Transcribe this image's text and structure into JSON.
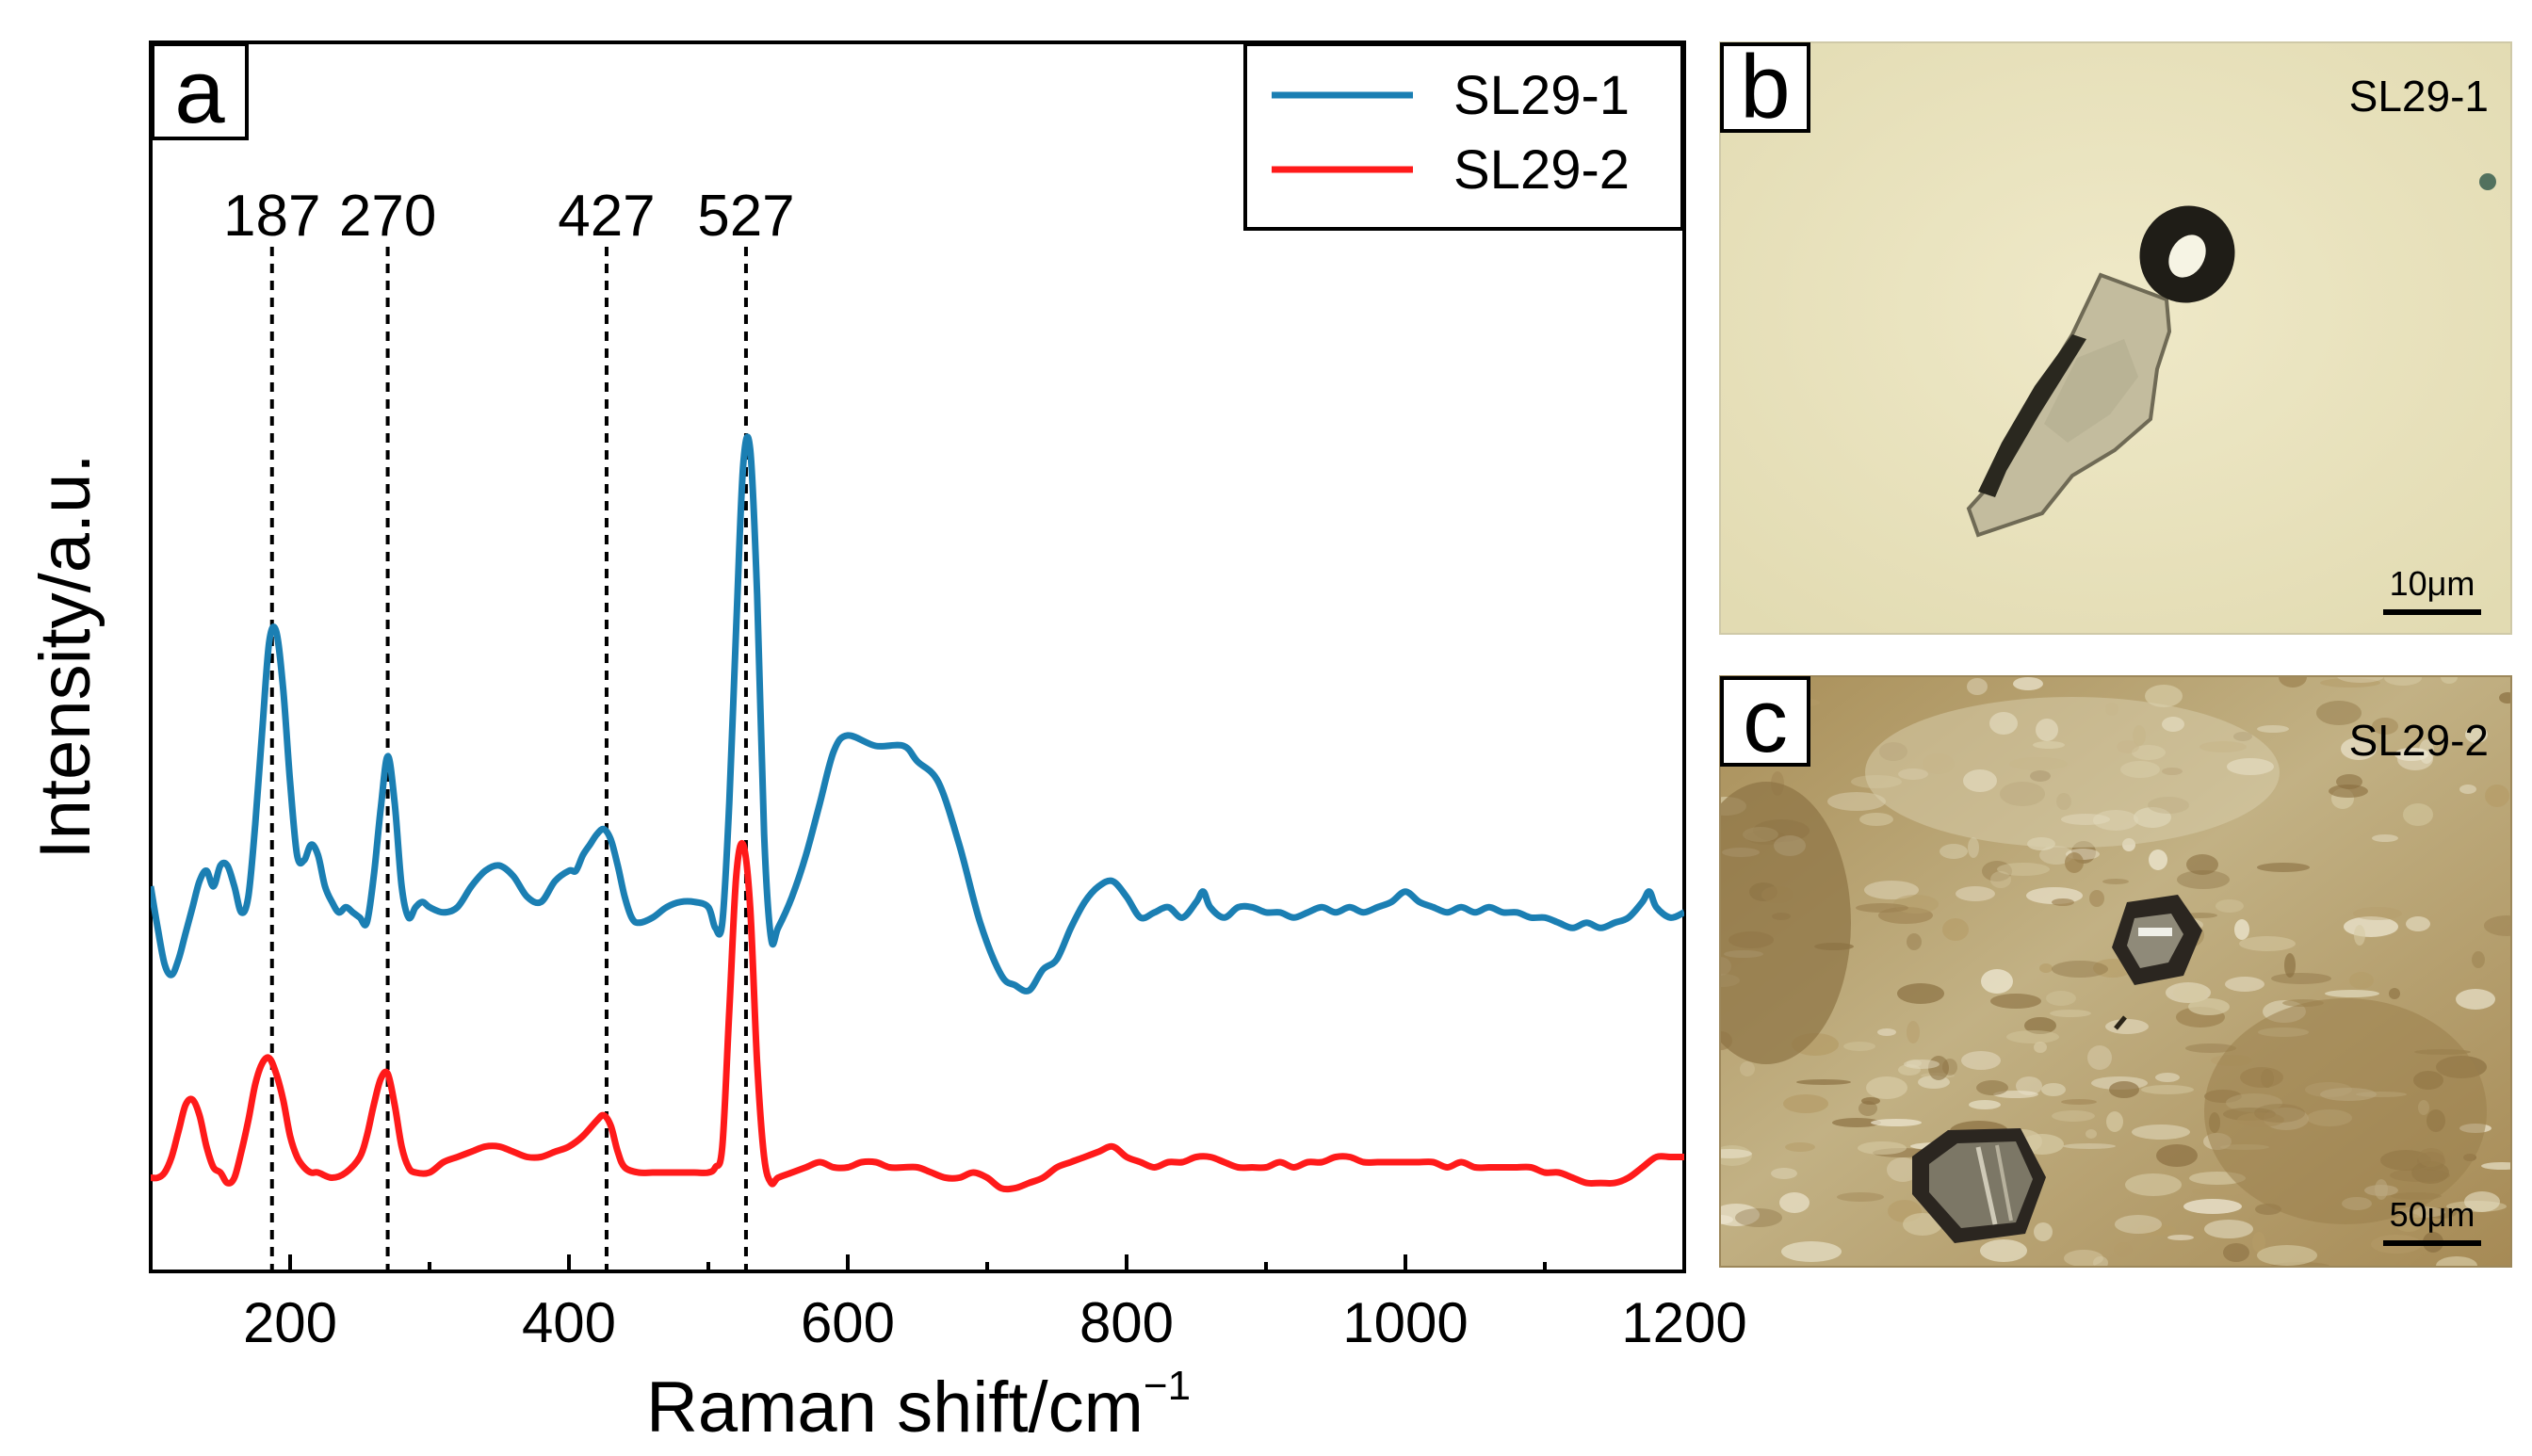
{
  "chart_data": {
    "type": "line",
    "panel_label": "a",
    "xlabel": "Raman shift/",
    "xlabel_unit": "cm",
    "xlabel_exp": "−1",
    "ylabel": "Intensity/a.u.",
    "xlim": [
      100,
      1200
    ],
    "ylim": [
      0,
      100
    ],
    "x_ticks": [
      200,
      400,
      600,
      800,
      1000,
      1200
    ],
    "x_tick_labels": [
      "200",
      "400",
      "600",
      "800",
      "1000",
      "1200"
    ],
    "legend": [
      {
        "name": "SL29-1",
        "color": "#1b7fb3"
      },
      {
        "name": "SL29-2",
        "color": "#ff1a1a"
      }
    ],
    "peak_lines": [
      {
        "x": 187,
        "label": "187"
      },
      {
        "x": 270,
        "label": "270"
      },
      {
        "x": 427,
        "label": "427"
      },
      {
        "x": 527,
        "label": "527"
      }
    ],
    "series": [
      {
        "name": "SL29-1",
        "color": "#1b7fb3",
        "points": [
          [
            100,
            37
          ],
          [
            105,
            33
          ],
          [
            110,
            29.5
          ],
          [
            115,
            28.5
          ],
          [
            120,
            30
          ],
          [
            125,
            32.5
          ],
          [
            130,
            35
          ],
          [
            135,
            37.5
          ],
          [
            140,
            38.5
          ],
          [
            145,
            37
          ],
          [
            150,
            39
          ],
          [
            155,
            39
          ],
          [
            160,
            37
          ],
          [
            165,
            34.5
          ],
          [
            170,
            36
          ],
          [
            175,
            43
          ],
          [
            180,
            52
          ],
          [
            185,
            60.5
          ],
          [
            190,
            61.5
          ],
          [
            195,
            56
          ],
          [
            200,
            47
          ],
          [
            205,
            40
          ],
          [
            210,
            39.5
          ],
          [
            215,
            41
          ],
          [
            220,
            40
          ],
          [
            225,
            37
          ],
          [
            230,
            35.5
          ],
          [
            235,
            34.5
          ],
          [
            240,
            35
          ],
          [
            245,
            34.5
          ],
          [
            250,
            34
          ],
          [
            255,
            33.5
          ],
          [
            260,
            38
          ],
          [
            265,
            44.5
          ],
          [
            270,
            49.5
          ],
          [
            275,
            45
          ],
          [
            280,
            37
          ],
          [
            285,
            34
          ],
          [
            290,
            35
          ],
          [
            295,
            35.5
          ],
          [
            300,
            35
          ],
          [
            310,
            34.5
          ],
          [
            320,
            35
          ],
          [
            330,
            37
          ],
          [
            340,
            38.5
          ],
          [
            350,
            39
          ],
          [
            360,
            38
          ],
          [
            370,
            36
          ],
          [
            380,
            35.5
          ],
          [
            390,
            37.5
          ],
          [
            400,
            38.5
          ],
          [
            405,
            38.5
          ],
          [
            410,
            40
          ],
          [
            415,
            41
          ],
          [
            420,
            42
          ],
          [
            425,
            42.5
          ],
          [
            430,
            41.5
          ],
          [
            435,
            39
          ],
          [
            440,
            36
          ],
          [
            445,
            34
          ],
          [
            450,
            33.5
          ],
          [
            460,
            34
          ],
          [
            470,
            35
          ],
          [
            480,
            35.5
          ],
          [
            490,
            35.5
          ],
          [
            500,
            35
          ],
          [
            505,
            33
          ],
          [
            510,
            33.5
          ],
          [
            515,
            45
          ],
          [
            520,
            62
          ],
          [
            525,
            77.5
          ],
          [
            530,
            79
          ],
          [
            535,
            65
          ],
          [
            540,
            42
          ],
          [
            545,
            32
          ],
          [
            550,
            33
          ],
          [
            560,
            36
          ],
          [
            570,
            40
          ],
          [
            580,
            45
          ],
          [
            590,
            50
          ],
          [
            600,
            51.5
          ],
          [
            620,
            50.5
          ],
          [
            640,
            50.5
          ],
          [
            650,
            49
          ],
          [
            665,
            47
          ],
          [
            680,
            41
          ],
          [
            695,
            33.5
          ],
          [
            710,
            28.5
          ],
          [
            720,
            27.5
          ],
          [
            730,
            27
          ],
          [
            740,
            29
          ],
          [
            750,
            30
          ],
          [
            760,
            33
          ],
          [
            770,
            35.5
          ],
          [
            780,
            37
          ],
          [
            790,
            37.5
          ],
          [
            800,
            36
          ],
          [
            810,
            34
          ],
          [
            820,
            34.5
          ],
          [
            830,
            35
          ],
          [
            840,
            34
          ],
          [
            850,
            35.5
          ],
          [
            855,
            36.5
          ],
          [
            860,
            35
          ],
          [
            870,
            34
          ],
          [
            880,
            35
          ],
          [
            890,
            35
          ],
          [
            900,
            34.5
          ],
          [
            910,
            34.5
          ],
          [
            920,
            34
          ],
          [
            930,
            34.5
          ],
          [
            940,
            35
          ],
          [
            950,
            34.5
          ],
          [
            960,
            35
          ],
          [
            970,
            34.5
          ],
          [
            980,
            35
          ],
          [
            990,
            35.5
          ],
          [
            1000,
            36.5
          ],
          [
            1010,
            35.5
          ],
          [
            1020,
            35
          ],
          [
            1030,
            34.5
          ],
          [
            1040,
            35
          ],
          [
            1050,
            34.5
          ],
          [
            1060,
            35
          ],
          [
            1070,
            34.5
          ],
          [
            1080,
            34.5
          ],
          [
            1090,
            34
          ],
          [
            1100,
            34
          ],
          [
            1110,
            33.5
          ],
          [
            1120,
            33
          ],
          [
            1130,
            33.5
          ],
          [
            1140,
            33
          ],
          [
            1150,
            33.5
          ],
          [
            1160,
            34
          ],
          [
            1170,
            35.5
          ],
          [
            1175,
            36.5
          ],
          [
            1180,
            35
          ],
          [
            1190,
            34
          ],
          [
            1200,
            34.5
          ]
        ]
      },
      {
        "name": "SL29-2",
        "color": "#ff1a1a",
        "points": [
          [
            100,
            9
          ],
          [
            105,
            9
          ],
          [
            110,
            9.5
          ],
          [
            115,
            11
          ],
          [
            120,
            13.5
          ],
          [
            125,
            16
          ],
          [
            130,
            16.5
          ],
          [
            135,
            15
          ],
          [
            140,
            12
          ],
          [
            145,
            10
          ],
          [
            150,
            9.5
          ],
          [
            155,
            8.5
          ],
          [
            160,
            9
          ],
          [
            165,
            11.5
          ],
          [
            170,
            14.5
          ],
          [
            175,
            18
          ],
          [
            180,
            20
          ],
          [
            185,
            20.5
          ],
          [
            190,
            19
          ],
          [
            195,
            16.5
          ],
          [
            200,
            13
          ],
          [
            205,
            11
          ],
          [
            210,
            10
          ],
          [
            215,
            9.5
          ],
          [
            220,
            9.5
          ],
          [
            230,
            9
          ],
          [
            240,
            9.5
          ],
          [
            250,
            11
          ],
          [
            255,
            13
          ],
          [
            260,
            16
          ],
          [
            265,
            18.5
          ],
          [
            270,
            19
          ],
          [
            275,
            16
          ],
          [
            280,
            12
          ],
          [
            285,
            10
          ],
          [
            290,
            9.5
          ],
          [
            300,
            9.5
          ],
          [
            310,
            10.5
          ],
          [
            320,
            11
          ],
          [
            330,
            11.5
          ],
          [
            340,
            12
          ],
          [
            350,
            12
          ],
          [
            360,
            11.5
          ],
          [
            370,
            11
          ],
          [
            380,
            11
          ],
          [
            390,
            11.5
          ],
          [
            400,
            12
          ],
          [
            410,
            13
          ],
          [
            420,
            14.5
          ],
          [
            425,
            15
          ],
          [
            430,
            14
          ],
          [
            435,
            11.5
          ],
          [
            440,
            10
          ],
          [
            450,
            9.5
          ],
          [
            460,
            9.5
          ],
          [
            470,
            9.5
          ],
          [
            480,
            9.5
          ],
          [
            490,
            9.5
          ],
          [
            500,
            9.5
          ],
          [
            505,
            10
          ],
          [
            510,
            12
          ],
          [
            515,
            25
          ],
          [
            520,
            38
          ],
          [
            525,
            41
          ],
          [
            530,
            35
          ],
          [
            535,
            20
          ],
          [
            540,
            11
          ],
          [
            545,
            8.5
          ],
          [
            550,
            9
          ],
          [
            560,
            9.5
          ],
          [
            570,
            10
          ],
          [
            580,
            10.5
          ],
          [
            590,
            10
          ],
          [
            600,
            10
          ],
          [
            610,
            10.5
          ],
          [
            620,
            10.5
          ],
          [
            630,
            10
          ],
          [
            640,
            10
          ],
          [
            650,
            10
          ],
          [
            660,
            9.5
          ],
          [
            670,
            9
          ],
          [
            680,
            9
          ],
          [
            690,
            9.5
          ],
          [
            700,
            9
          ],
          [
            710,
            8
          ],
          [
            720,
            8
          ],
          [
            730,
            8.5
          ],
          [
            740,
            9
          ],
          [
            750,
            10
          ],
          [
            760,
            10.5
          ],
          [
            770,
            11
          ],
          [
            780,
            11.5
          ],
          [
            790,
            12
          ],
          [
            800,
            11
          ],
          [
            810,
            10.5
          ],
          [
            820,
            10
          ],
          [
            830,
            10.5
          ],
          [
            840,
            10.5
          ],
          [
            850,
            11
          ],
          [
            860,
            11
          ],
          [
            870,
            10.5
          ],
          [
            880,
            10
          ],
          [
            890,
            10
          ],
          [
            900,
            10
          ],
          [
            910,
            10.5
          ],
          [
            920,
            10
          ],
          [
            930,
            10.5
          ],
          [
            940,
            10.5
          ],
          [
            950,
            11
          ],
          [
            960,
            11
          ],
          [
            970,
            10.5
          ],
          [
            980,
            10.5
          ],
          [
            990,
            10.5
          ],
          [
            1000,
            10.5
          ],
          [
            1010,
            10.5
          ],
          [
            1020,
            10.5
          ],
          [
            1030,
            10
          ],
          [
            1040,
            10.5
          ],
          [
            1050,
            10
          ],
          [
            1060,
            10
          ],
          [
            1070,
            10
          ],
          [
            1080,
            10
          ],
          [
            1090,
            10
          ],
          [
            1100,
            9.5
          ],
          [
            1110,
            9.5
          ],
          [
            1120,
            9
          ],
          [
            1130,
            8.5
          ],
          [
            1140,
            8.5
          ],
          [
            1150,
            8.5
          ],
          [
            1160,
            9
          ],
          [
            1170,
            10
          ],
          [
            1180,
            11
          ],
          [
            1190,
            11
          ],
          [
            1200,
            11
          ]
        ]
      }
    ]
  },
  "photos": [
    {
      "panel_label": "b",
      "sample": "SL29-1",
      "scale": "10μm",
      "background": "#e8e2be"
    },
    {
      "panel_label": "c",
      "sample": "SL29-2",
      "scale": "50μm",
      "background": "#b49e6a"
    }
  ]
}
